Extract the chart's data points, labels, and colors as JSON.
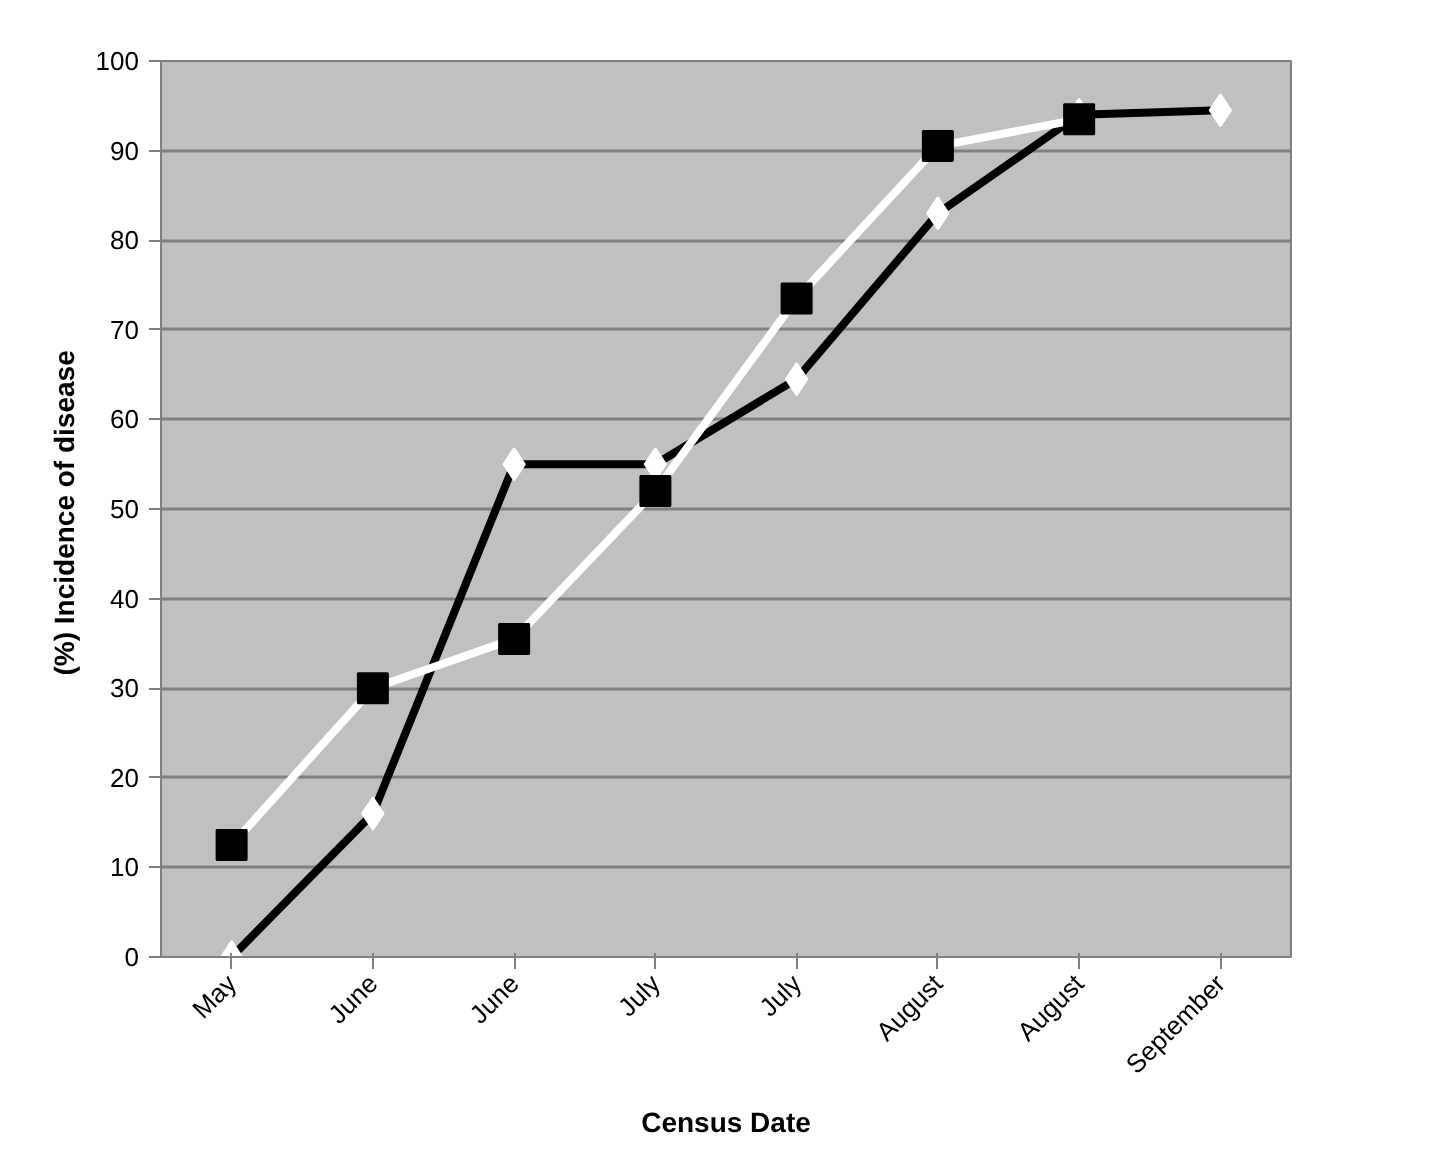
{
  "chart_data": {
    "type": "line",
    "xlabel": "Census Date",
    "ylabel": "(%)  Incidence of disease",
    "categories": [
      "May",
      "June",
      "June",
      "July",
      "July",
      "August",
      "August",
      "September"
    ],
    "ylim": [
      0,
      100
    ],
    "yticks": [
      0,
      10,
      20,
      30,
      40,
      50,
      60,
      70,
      80,
      90,
      100
    ],
    "grid": "y",
    "series": [
      {
        "color": "#000000",
        "marker": "diamond",
        "values": [
          0,
          16,
          55,
          55,
          64.5,
          83,
          94,
          94.5
        ]
      },
      {
        "color": "#ffffff",
        "marker": "square",
        "values": [
          12.5,
          30,
          35.5,
          52,
          73.5,
          90.5,
          93.5,
          null
        ]
      }
    ]
  }
}
